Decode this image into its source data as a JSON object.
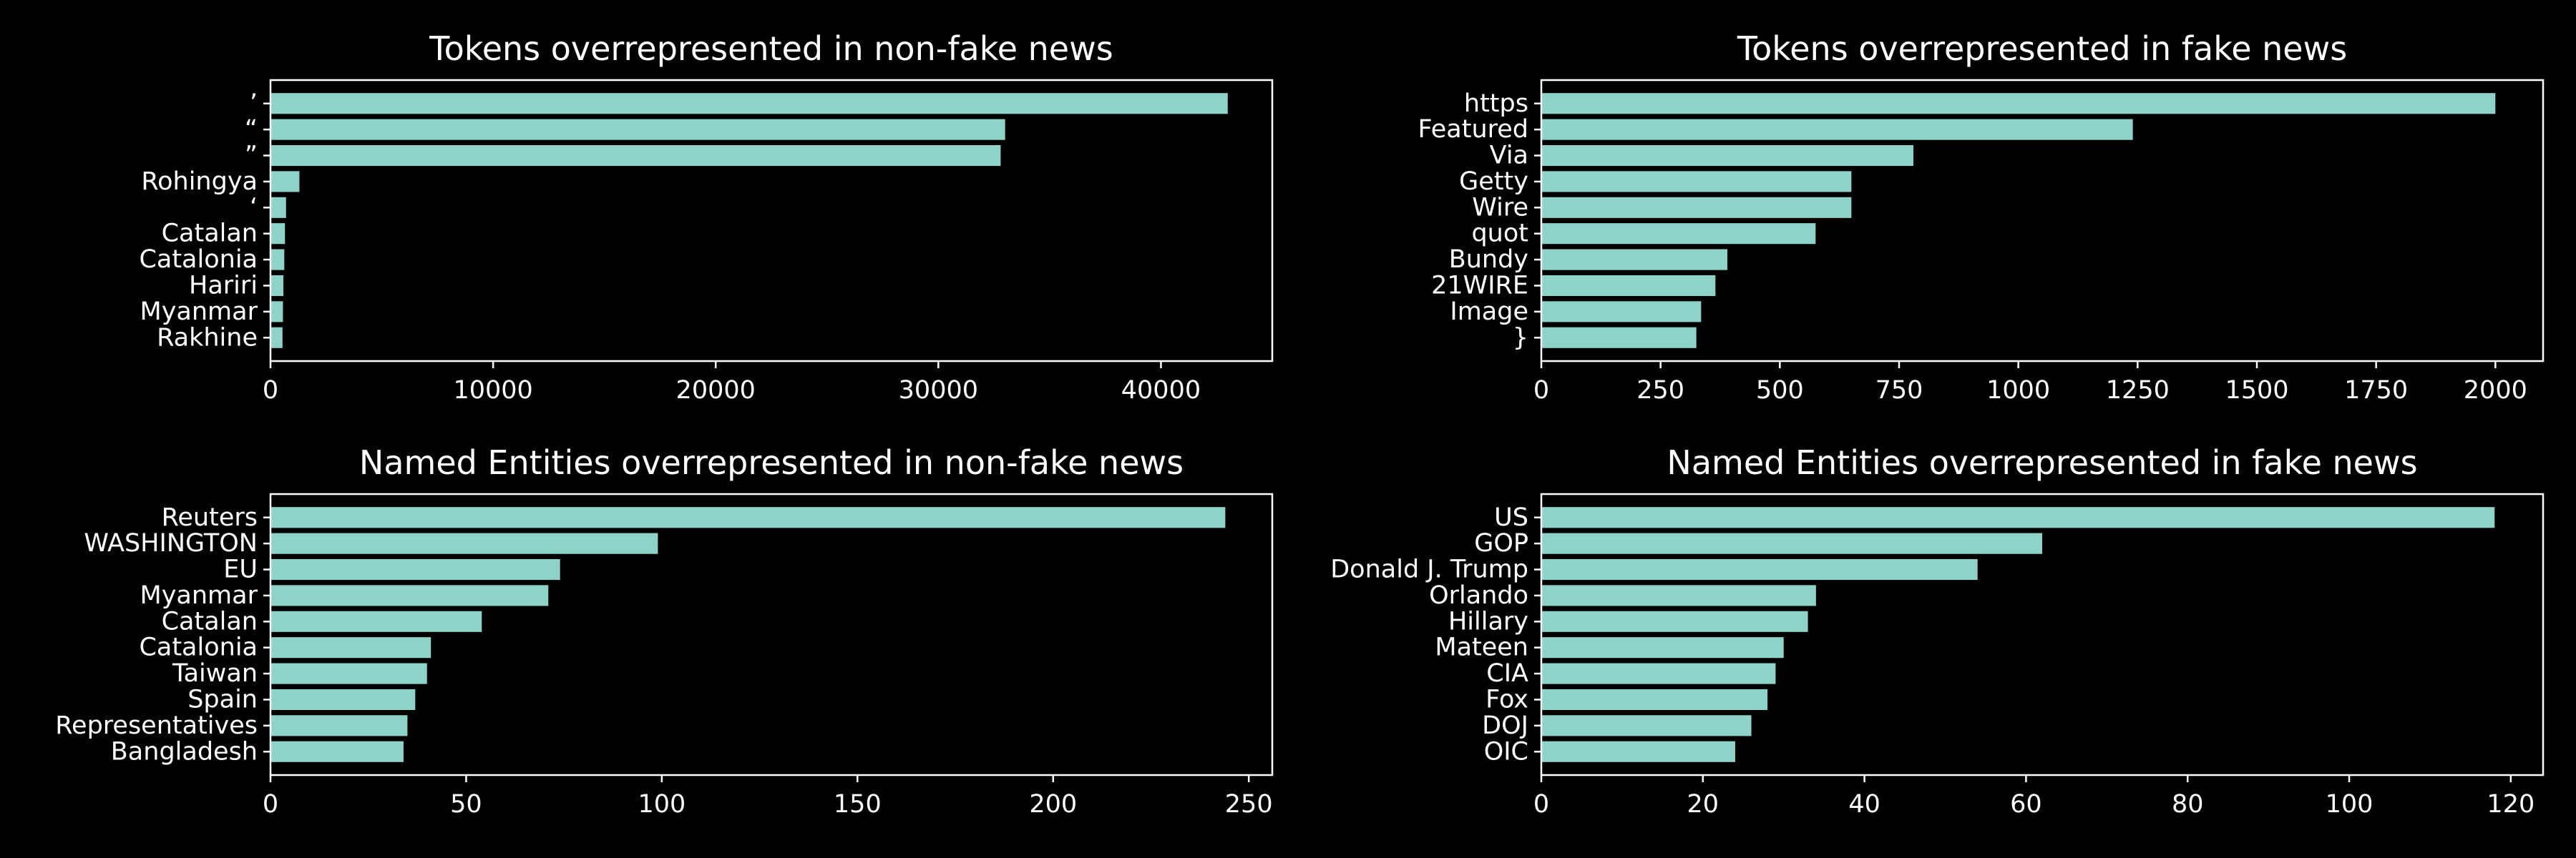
{
  "colors": {
    "background": "#000000",
    "bar": "#8dd3c7",
    "text": "#ffffff",
    "axes": "#ffffff"
  },
  "chart_data": [
    {
      "type": "bar",
      "orientation": "horizontal",
      "title": "Tokens overrepresented in non-fake news",
      "categories": [
        "’",
        "“",
        "”",
        "Rohingya",
        "‘",
        "Catalan",
        "Catalonia",
        "Hariri",
        "Myanmar",
        "Rakhine"
      ],
      "values": [
        43000,
        33000,
        32800,
        1300,
        700,
        650,
        620,
        580,
        560,
        540
      ],
      "xlim": [
        0,
        45000
      ],
      "xticks": [
        0,
        10000,
        20000,
        30000,
        40000
      ],
      "xticklabels": [
        "0",
        "10000",
        "20000",
        "30000",
        "40000"
      ],
      "grid": false
    },
    {
      "type": "bar",
      "orientation": "horizontal",
      "title": "Tokens overrepresented in fake news",
      "categories": [
        "https",
        "Featured",
        "Via",
        "Getty",
        "Wire",
        "quot",
        "Bundy",
        "21WIRE",
        "Image",
        "}"
      ],
      "values": [
        2000,
        1240,
        780,
        650,
        650,
        575,
        390,
        365,
        335,
        325
      ],
      "xlim": [
        0,
        2100
      ],
      "xticks": [
        0,
        250,
        500,
        750,
        1000,
        1250,
        1500,
        1750,
        2000
      ],
      "xticklabels": [
        "0",
        "250",
        "500",
        "750",
        "1000",
        "1250",
        "1500",
        "1750",
        "2000"
      ],
      "grid": false
    },
    {
      "type": "bar",
      "orientation": "horizontal",
      "title": "Named Entities overrepresented in non-fake news",
      "categories": [
        "Reuters",
        "WASHINGTON",
        "EU",
        "Myanmar",
        "Catalan",
        "Catalonia",
        "Taiwan",
        "Spain",
        "Representatives",
        "Bangladesh"
      ],
      "values": [
        244,
        99,
        74,
        71,
        54,
        41,
        40,
        37,
        35,
        34
      ],
      "xlim": [
        0,
        256
      ],
      "xticks": [
        0,
        50,
        100,
        150,
        200,
        250
      ],
      "xticklabels": [
        "0",
        "50",
        "100",
        "150",
        "200",
        "250"
      ],
      "grid": false
    },
    {
      "type": "bar",
      "orientation": "horizontal",
      "title": "Named Entities overrepresented in fake news",
      "categories": [
        "US",
        "GOP",
        "Donald J. Trump",
        "Orlando",
        "Hillary",
        "Mateen",
        "CIA",
        "Fox",
        "DOJ",
        "OIC"
      ],
      "values": [
        118,
        62,
        54,
        34,
        33,
        30,
        29,
        28,
        26,
        24
      ],
      "xlim": [
        0,
        124
      ],
      "xticks": [
        0,
        20,
        40,
        60,
        80,
        100,
        120
      ],
      "xticklabels": [
        "0",
        "20",
        "40",
        "60",
        "80",
        "100",
        "120"
      ],
      "grid": false
    }
  ]
}
